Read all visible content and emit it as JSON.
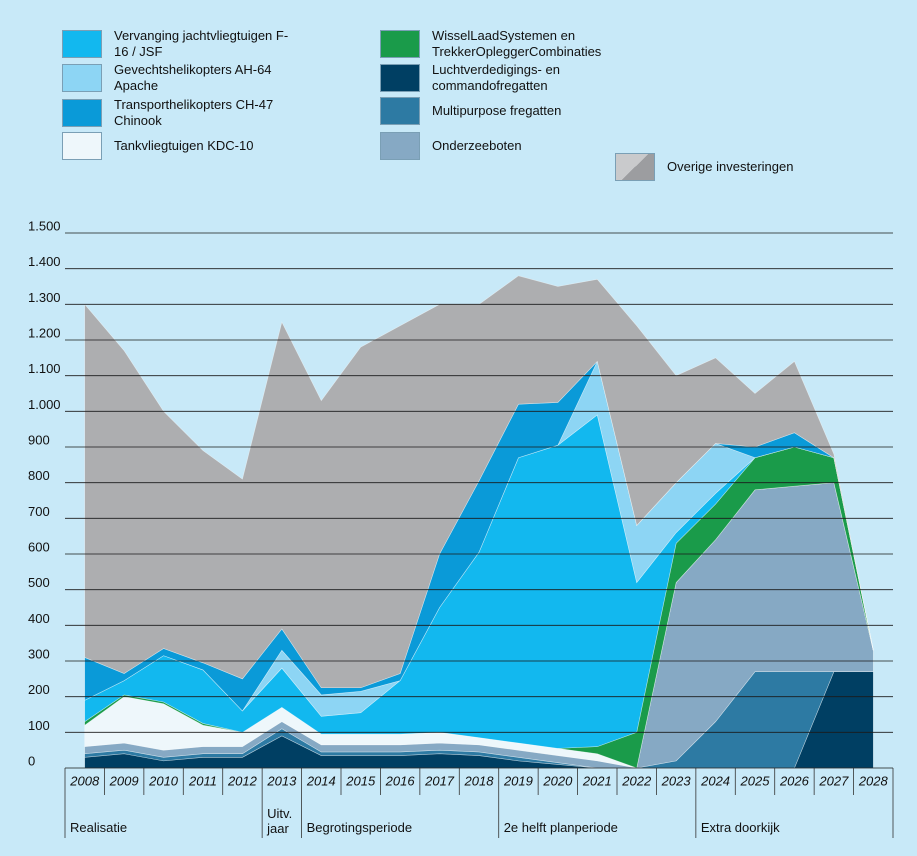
{
  "chart_data": {
    "type": "stacked_area",
    "categories": [
      "2008",
      "2009",
      "2010",
      "2011",
      "2012",
      "2013",
      "2014",
      "2015",
      "2016",
      "2017",
      "2018",
      "2019",
      "2020",
      "2021",
      "2022",
      "2023",
      "2024",
      "2025",
      "2026",
      "2027",
      "2028"
    ],
    "periods": [
      "Realisatie",
      "Uitv. jaar",
      "Begrotingsperiode",
      "2e helft planperiode",
      "Extra doorkijk"
    ],
    "ylim": [
      0,
      1500
    ],
    "yticks": [
      0,
      100,
      200,
      300,
      400,
      500,
      600,
      700,
      800,
      900,
      {
        "value": 1000,
        "label": "1.000"
      },
      {
        "value": 1100,
        "label": "1.100"
      },
      {
        "value": 1200,
        "label": "1.200"
      },
      {
        "value": 1300,
        "label": "1.300"
      },
      {
        "value": 1400,
        "label": "1.400"
      },
      {
        "value": 1500,
        "label": "1.500"
      }
    ],
    "grid": true,
    "series": [
      {
        "name": "Luchtverdedigings- en commandofregatten",
        "color": "#003f63",
        "values": [
          30,
          40,
          20,
          30,
          30,
          90,
          35,
          35,
          35,
          40,
          35,
          20,
          10,
          0,
          0,
          0,
          0,
          0,
          0,
          270,
          270
        ]
      },
      {
        "name": "Multipurpose fregatten",
        "color": "#2d7aa3",
        "values": [
          10,
          10,
          10,
          10,
          10,
          20,
          10,
          10,
          10,
          10,
          10,
          10,
          5,
          0,
          0,
          20,
          130,
          270,
          270,
          0,
          0
        ]
      },
      {
        "name": "Onderzeeboten",
        "color": "#86a9c4",
        "values": [
          20,
          20,
          20,
          20,
          20,
          20,
          20,
          20,
          20,
          20,
          20,
          20,
          20,
          20,
          0,
          500,
          510,
          510,
          520,
          530,
          60
        ]
      },
      {
        "name": "Tankvliegtuigen KDC-10",
        "color": "#eef7fb",
        "values": [
          60,
          130,
          130,
          60,
          40,
          40,
          30,
          30,
          30,
          30,
          20,
          20,
          20,
          20,
          0,
          0,
          0,
          0,
          0,
          0,
          0
        ]
      },
      {
        "name": "WisselLaadSystemen en TrekkerOpleggerCombinaties",
        "color": "#1a9b4a",
        "values": [
          10,
          5,
          5,
          5,
          0,
          0,
          0,
          0,
          0,
          0,
          0,
          0,
          0,
          20,
          100,
          110,
          100,
          90,
          110,
          70,
          0
        ]
      },
      {
        "name": "Vervanging jachtvliegtuigen F-16 / JSF",
        "color": "#12b8ef",
        "values": [
          60,
          40,
          130,
          150,
          60,
          110,
          50,
          60,
          150,
          350,
          520,
          800,
          850,
          930,
          420,
          30,
          30,
          0,
          0,
          0,
          0
        ]
      },
      {
        "name": "Gevechtshelikopters AH-64 Apache",
        "color": "#8dd5f4",
        "values": [
          0,
          0,
          0,
          0,
          0,
          50,
          60,
          60,
          0,
          0,
          0,
          0,
          0,
          150,
          160,
          140,
          140,
          0,
          0,
          0,
          0
        ]
      },
      {
        "name": "Transporthelikopters CH-47 Chinook",
        "color": "#0a9ad8",
        "values": [
          120,
          20,
          20,
          20,
          90,
          60,
          20,
          10,
          20,
          150,
          200,
          150,
          120,
          0,
          0,
          0,
          0,
          30,
          40,
          0,
          0
        ]
      },
      {
        "name": "Overige investeringen",
        "color": "#adaeb0",
        "values": [
          990,
          905,
          665,
          595,
          560,
          860,
          805,
          955,
          975,
          700,
          495,
          360,
          325,
          230,
          560,
          300,
          240,
          150,
          200,
          10,
          0
        ]
      }
    ]
  }
}
